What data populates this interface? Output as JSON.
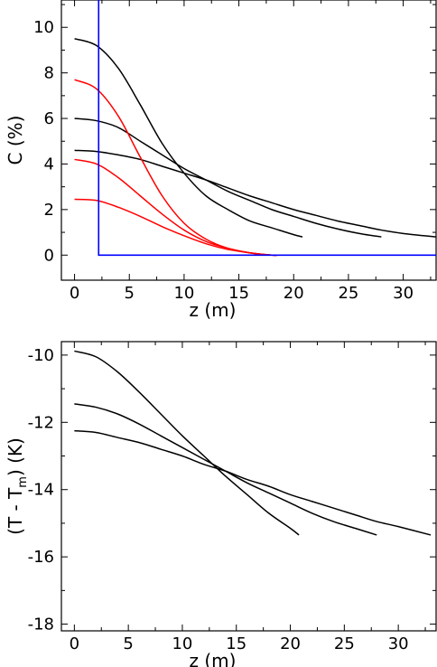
{
  "chart_data": [
    {
      "type": "line",
      "xlabel": "z (m)",
      "ylabel": "C (%)",
      "xlim": [
        -1.2,
        33
      ],
      "ylim": [
        -1.1,
        11.2
      ],
      "xticks": [
        0,
        5,
        10,
        15,
        20,
        25,
        30
      ],
      "yticks": [
        0,
        2,
        4,
        6,
        8,
        10
      ],
      "xtick_labels": [
        "0",
        "5",
        "10",
        "15",
        "20",
        "25",
        "30"
      ],
      "ytick_labels": [
        "0",
        "2",
        "4",
        "6",
        "8",
        "10"
      ],
      "grid": false,
      "colors": {
        "black": "#000000",
        "red": "#ff0000",
        "blue": "#0000ff"
      },
      "series": [
        {
          "color": "#000000",
          "x": [
            0,
            2,
            4,
            6,
            8,
            10,
            12,
            14,
            16,
            18,
            20,
            20.8
          ],
          "y": [
            9.5,
            9.2,
            8.2,
            6.6,
            4.9,
            3.6,
            2.6,
            2.0,
            1.5,
            1.2,
            0.9,
            0.8
          ]
        },
        {
          "color": "#000000",
          "x": [
            0,
            2,
            4,
            6,
            8,
            10,
            12,
            14,
            16,
            18,
            20,
            22,
            24,
            26,
            28
          ],
          "y": [
            6.0,
            5.9,
            5.6,
            5.0,
            4.4,
            3.8,
            3.3,
            2.8,
            2.4,
            2.0,
            1.7,
            1.4,
            1.15,
            0.95,
            0.8
          ]
        },
        {
          "color": "#000000",
          "x": [
            0,
            2,
            4,
            6,
            8,
            10,
            12,
            14,
            16,
            18,
            20,
            22,
            24,
            26,
            28,
            30,
            33
          ],
          "y": [
            4.6,
            4.55,
            4.4,
            4.2,
            3.9,
            3.6,
            3.3,
            2.95,
            2.6,
            2.3,
            2.0,
            1.75,
            1.5,
            1.3,
            1.1,
            0.95,
            0.8
          ]
        },
        {
          "color": "#ff0000",
          "x": [
            0,
            2,
            4,
            6,
            8,
            10,
            12,
            14,
            16,
            18,
            18.5
          ],
          "y": [
            7.7,
            7.3,
            6.1,
            4.3,
            2.6,
            1.4,
            0.7,
            0.3,
            0.1,
            0.0,
            0.0
          ]
        },
        {
          "color": "#ff0000",
          "x": [
            0,
            2,
            4,
            6,
            8,
            10,
            12,
            14,
            16,
            18,
            18.5
          ],
          "y": [
            4.2,
            4.0,
            3.4,
            2.6,
            1.8,
            1.1,
            0.6,
            0.3,
            0.1,
            0.0,
            0.0
          ]
        },
        {
          "color": "#ff0000",
          "x": [
            0,
            2,
            4,
            6,
            8,
            10,
            12,
            14,
            16,
            18,
            18.5
          ],
          "y": [
            2.45,
            2.4,
            2.1,
            1.7,
            1.25,
            0.85,
            0.5,
            0.25,
            0.1,
            0.0,
            0.0
          ]
        },
        {
          "color": "#0000ff",
          "x": [
            2.2,
            2.2,
            33
          ],
          "y": [
            11.2,
            0,
            0
          ]
        }
      ]
    },
    {
      "type": "line",
      "xlabel": "z (m)",
      "ylabel_parts": [
        "(T - T",
        "m",
        ") (K)"
      ],
      "xlim": [
        -1.2,
        33.5
      ],
      "ylim": [
        -18.2,
        -9.6
      ],
      "xticks": [
        0,
        5,
        10,
        15,
        20,
        25,
        30
      ],
      "yticks": [
        -18,
        -16,
        -14,
        -12,
        -10
      ],
      "xtick_labels": [
        "0",
        "5",
        "10",
        "15",
        "20",
        "25",
        "30"
      ],
      "ytick_labels": [
        "-18",
        "-16",
        "-14",
        "-12",
        "-10"
      ],
      "grid": false,
      "colors": {
        "black": "#000000"
      },
      "series": [
        {
          "color": "#000000",
          "x": [
            0,
            2,
            4,
            6,
            8,
            10,
            12,
            14,
            16,
            18,
            20,
            20.8
          ],
          "y": [
            -9.88,
            -10.05,
            -10.5,
            -11.1,
            -11.75,
            -12.4,
            -13.0,
            -13.6,
            -14.15,
            -14.7,
            -15.15,
            -15.35
          ]
        },
        {
          "color": "#000000",
          "x": [
            0,
            2,
            4,
            6,
            8,
            10,
            12,
            14,
            16,
            18,
            20,
            22,
            24,
            26,
            28
          ],
          "y": [
            -11.45,
            -11.55,
            -11.75,
            -12.05,
            -12.4,
            -12.75,
            -13.1,
            -13.45,
            -13.8,
            -14.1,
            -14.4,
            -14.7,
            -14.95,
            -15.15,
            -15.35
          ]
        },
        {
          "color": "#000000",
          "x": [
            0,
            2,
            4,
            6,
            8,
            10,
            12,
            14,
            16,
            18,
            20,
            22,
            24,
            26,
            28,
            30,
            33
          ],
          "y": [
            -12.25,
            -12.3,
            -12.45,
            -12.6,
            -12.8,
            -13.0,
            -13.25,
            -13.45,
            -13.7,
            -13.9,
            -14.15,
            -14.35,
            -14.55,
            -14.75,
            -14.95,
            -15.1,
            -15.35
          ]
        }
      ]
    }
  ]
}
